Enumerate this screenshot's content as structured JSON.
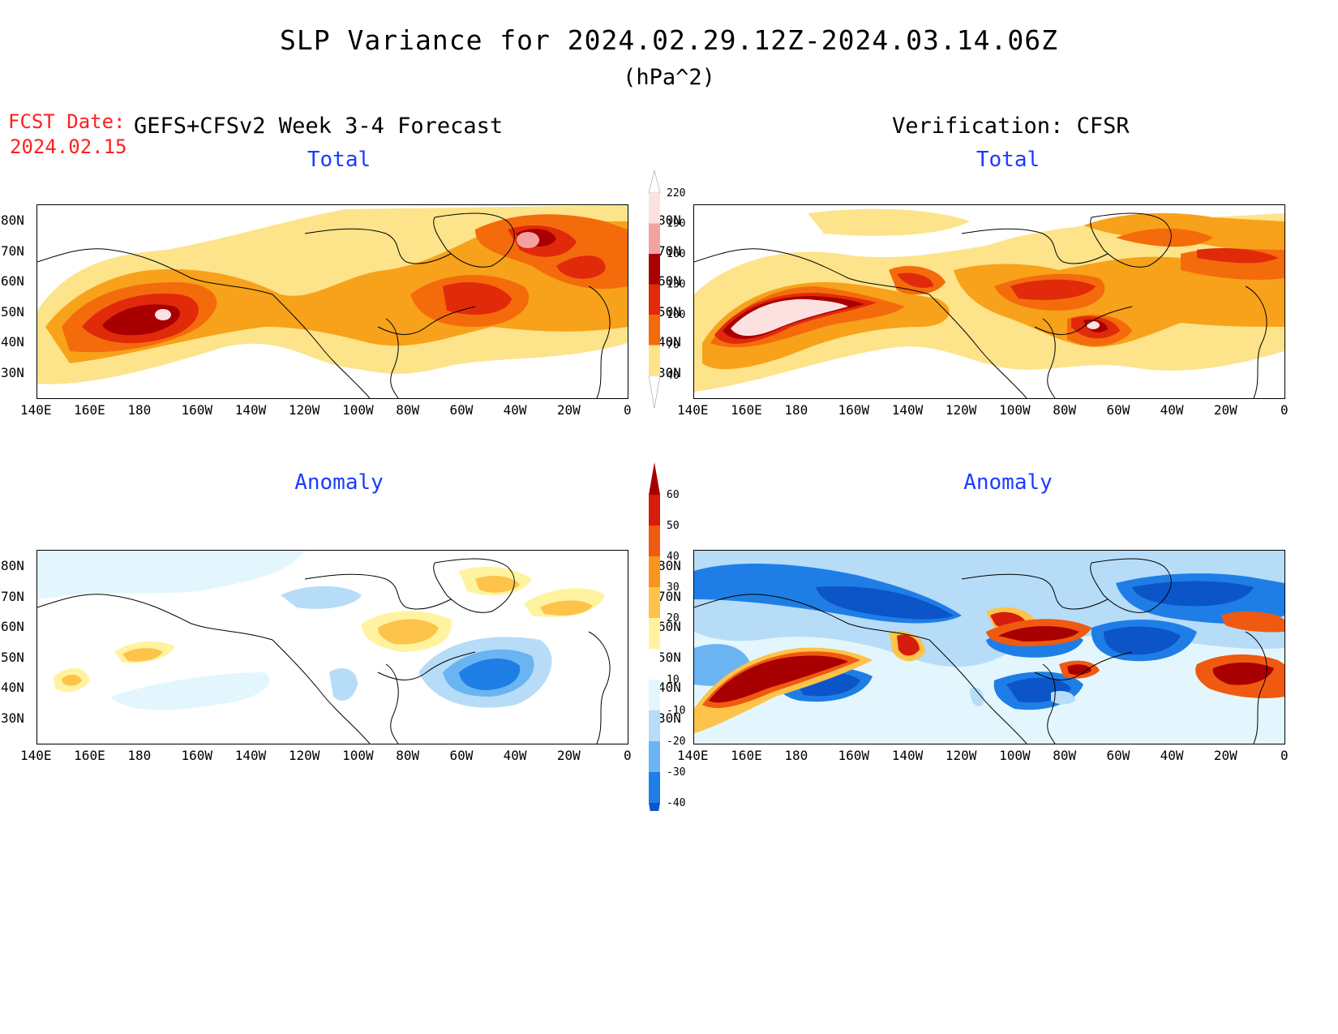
{
  "title": "SLP Variance for 2024.02.29.12Z-2024.03.14.06Z",
  "units": "(hPa^2)",
  "fcst_label": "FCST Date:",
  "fcst_date": "2024.02.15",
  "forecast_title": "GEFS+CFSv2 Week 3-4 Forecast",
  "verification_title": "Verification: CFSR",
  "panels": {
    "fcst_total": "Total",
    "verif_total": "Total",
    "fcst_anom": "Anomaly",
    "verif_anom": "Anomaly"
  },
  "axes": {
    "lon_ticks": [
      "140E",
      "160E",
      "180",
      "160W",
      "140W",
      "120W",
      "100W",
      "80W",
      "60W",
      "40W",
      "20W",
      "0"
    ],
    "lat_ticks": [
      "80N",
      "70N",
      "60N",
      "50N",
      "40N",
      "30N"
    ]
  },
  "colorbar_total": {
    "levels": [
      "40",
      "70",
      "100",
      "130",
      "160",
      "190",
      "220"
    ],
    "colors": [
      "#fde38a",
      "#f7a21a",
      "#f46b0c",
      "#e12a0a",
      "#a80000",
      "#f4a1a1",
      "#fde1e1"
    ]
  },
  "colorbar_anomaly": {
    "levels": [
      "-40",
      "-30",
      "-20",
      "-10",
      "10",
      "20",
      "30",
      "40",
      "50",
      "60"
    ],
    "colors": [
      "#0b55c9",
      "#1f7ee6",
      "#6ab4f2",
      "#b6dcf8",
      "#e3f6fd",
      "#ffffff",
      "#fff3a0",
      "#fdc34a",
      "#f7961c",
      "#f05a10",
      "#d61c0c",
      "#a80000"
    ]
  }
}
